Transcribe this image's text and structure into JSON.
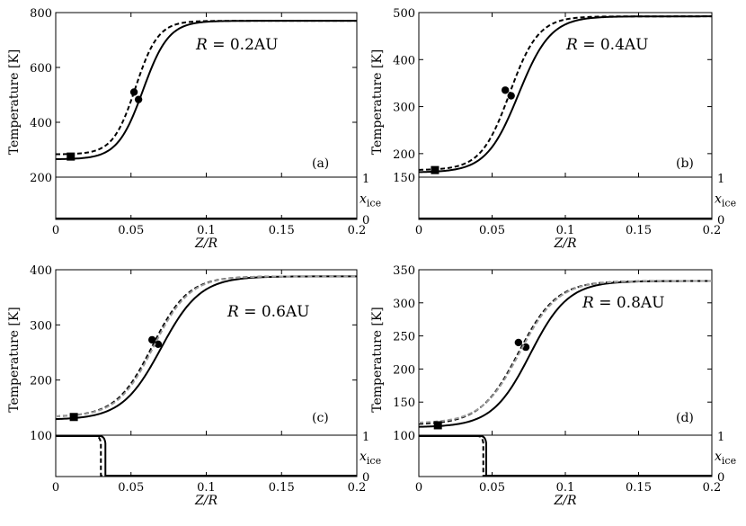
{
  "chart_data": [
    {
      "type": "line",
      "panel_label": "(a)",
      "annotation": "R = 0.2AU",
      "ylabel": "Temperature [K]",
      "xlabel": "Z/R",
      "xlim": [
        0,
        0.2
      ],
      "xticks": [
        "0",
        "0.05",
        "0.1",
        "0.15",
        "0.2"
      ],
      "ylim": [
        200,
        800
      ],
      "yticks": [
        "200",
        "400",
        "600",
        "800"
      ],
      "ice_axis": {
        "label": "x_ice",
        "ticks": [
          "0",
          "1"
        ]
      },
      "series": [
        {
          "name": "solid",
          "style": "solid",
          "color": "#000000",
          "T_low": 265,
          "T_high": 770,
          "z_mid": 0.058,
          "width": 0.0085,
          "marker": {
            "x": 0.055,
            "y": 483
          }
        },
        {
          "name": "dashed",
          "style": "dashed",
          "color": "#000000",
          "T_low": 283,
          "T_high": 770,
          "z_mid": 0.053,
          "width": 0.0075,
          "marker": {
            "x": 0.052,
            "y": 510
          }
        }
      ],
      "squares": [
        {
          "x": 0.01,
          "y": 275
        }
      ],
      "ice": [
        {
          "style": "solid",
          "z_cut": null
        },
        {
          "style": "dashed",
          "z_cut": null
        }
      ]
    },
    {
      "type": "line",
      "panel_label": "(b)",
      "annotation": "R = 0.4AU",
      "ylabel": "Temperature [K]",
      "xlabel": "Z/R",
      "xlim": [
        0,
        0.2
      ],
      "xticks": [
        "0",
        "0.05",
        "0.1",
        "0.15",
        "0.2"
      ],
      "ylim": [
        150,
        500
      ],
      "yticks": [
        "150",
        "200",
        "300",
        "400",
        "500"
      ],
      "ice_axis": {
        "label": "x_ice",
        "ticks": [
          "0",
          "1"
        ]
      },
      "series": [
        {
          "name": "solid",
          "style": "solid",
          "color": "#000000",
          "T_low": 160,
          "T_high": 492,
          "z_mid": 0.068,
          "width": 0.011,
          "marker": {
            "x": 0.063,
            "y": 323
          }
        },
        {
          "name": "dashed",
          "style": "dashed",
          "color": "#000000",
          "T_low": 165,
          "T_high": 492,
          "z_mid": 0.062,
          "width": 0.0098,
          "marker": {
            "x": 0.059,
            "y": 335
          }
        }
      ],
      "squares": [
        {
          "x": 0.011,
          "y": 165
        }
      ],
      "ice": [
        {
          "style": "solid",
          "z_cut": null
        },
        {
          "style": "dashed",
          "z_cut": null
        }
      ]
    },
    {
      "type": "line",
      "panel_label": "(c)",
      "annotation": "R = 0.6AU",
      "ylabel": "Temperature [K]",
      "xlabel": "Z/R",
      "xlim": [
        0,
        0.2
      ],
      "xticks": [
        "0",
        "0.05",
        "0.1",
        "0.15",
        "0.2"
      ],
      "ylim": [
        100,
        400
      ],
      "yticks": [
        "100",
        "200",
        "300",
        "400"
      ],
      "ice_axis": {
        "label": "x_ice",
        "ticks": [
          "0",
          "1"
        ]
      },
      "series": [
        {
          "name": "solid",
          "style": "solid",
          "color": "#000000",
          "T_low": 128,
          "T_high": 388,
          "z_mid": 0.07,
          "width": 0.013,
          "marker": {
            "x": 0.068,
            "y": 265
          }
        },
        {
          "name": "dashed",
          "style": "dashed",
          "color": "#000000",
          "T_low": 133,
          "T_high": 388,
          "z_mid": 0.064,
          "width": 0.012,
          "marker": {
            "x": 0.064,
            "y": 273
          }
        },
        {
          "name": "grey",
          "style": "dashed",
          "color": "#9a9a9a",
          "T_low": 133,
          "T_high": 388,
          "z_mid": 0.065,
          "width": 0.012,
          "marker": null
        }
      ],
      "squares": [
        {
          "x": 0.012,
          "y": 133
        }
      ],
      "ice": [
        {
          "style": "solid",
          "z_cut": 0.033
        },
        {
          "style": "dashed",
          "z_cut": 0.03
        }
      ]
    },
    {
      "type": "line",
      "panel_label": "(d)",
      "annotation": "R = 0.8AU",
      "ylabel": "Temperature [K]",
      "xlabel": "Z/R",
      "xlim": [
        0,
        0.2
      ],
      "xticks": [
        "0",
        "0.05",
        "0.1",
        "0.15",
        "0.2"
      ],
      "ylim": [
        100,
        350
      ],
      "yticks": [
        "100",
        "150",
        "200",
        "250",
        "300",
        "350"
      ],
      "ice_axis": {
        "label": "x_ice",
        "ticks": [
          "0",
          "1"
        ]
      },
      "series": [
        {
          "name": "solid",
          "style": "solid",
          "color": "#000000",
          "T_low": 112,
          "T_high": 333,
          "z_mid": 0.076,
          "width": 0.013,
          "marker": {
            "x": 0.073,
            "y": 233
          }
        },
        {
          "name": "dashed",
          "style": "dashed",
          "color": "#000000",
          "T_low": 116,
          "T_high": 333,
          "z_mid": 0.068,
          "width": 0.013,
          "marker": {
            "x": 0.068,
            "y": 240
          }
        },
        {
          "name": "grey",
          "style": "dashed",
          "color": "#9a9a9a",
          "T_low": 118,
          "T_high": 333,
          "z_mid": 0.069,
          "width": 0.013,
          "marker": null
        }
      ],
      "squares": [
        {
          "x": 0.013,
          "y": 115
        }
      ],
      "ice": [
        {
          "style": "solid",
          "z_cut": 0.046
        },
        {
          "style": "dashed",
          "z_cut": 0.044
        }
      ]
    }
  ]
}
